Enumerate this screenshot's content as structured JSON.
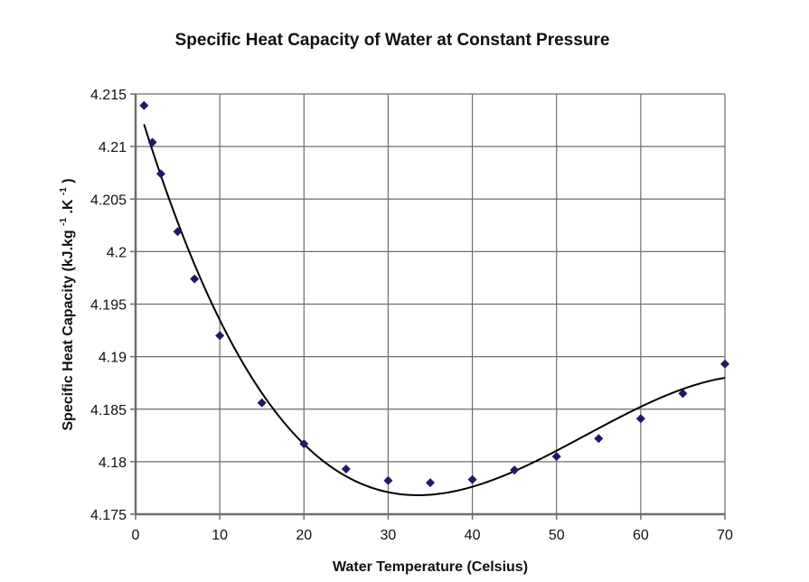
{
  "chart_data": {
    "type": "scatter",
    "title": "Specific Heat Capacity of Water at Constant Pressure",
    "xlabel": "Water Temperature (Celsius)",
    "ylabel": {
      "prefix": "Specific Heat Capacity (kJ.kg",
      "sup1": "-1",
      "mid": ".K",
      "sup2": "-1",
      "suffix": ")"
    },
    "xlim": [
      0,
      70
    ],
    "ylim": [
      4.175,
      4.215
    ],
    "x_ticks": [
      0,
      10,
      20,
      30,
      40,
      50,
      60,
      70
    ],
    "y_ticks": [
      4.175,
      4.18,
      4.185,
      4.19,
      4.195,
      4.2,
      4.205,
      4.21,
      4.215
    ],
    "y_tick_labels": [
      "4.175",
      "4.18",
      "4.185",
      "4.19",
      "4.195",
      "4.2",
      "4.205",
      "4.21",
      "4.215"
    ],
    "grid": true,
    "legend": "none",
    "series": [
      {
        "name": "Specific heat capacity",
        "marker": "diamond",
        "color": "#1f1a66",
        "x": [
          1,
          2,
          3,
          5,
          7,
          10,
          15,
          20,
          25,
          30,
          35,
          40,
          45,
          50,
          55,
          60,
          65,
          70
        ],
        "y": [
          4.2139,
          4.2104,
          4.2074,
          4.2019,
          4.1974,
          4.192,
          4.1856,
          4.1817,
          4.1793,
          4.1782,
          4.178,
          4.1783,
          4.1792,
          4.1805,
          4.1822,
          4.1841,
          4.1865,
          4.1893
        ]
      }
    ],
    "trendline": {
      "type": "polynomial",
      "order": 3,
      "color": "#000000",
      "x_range": [
        1,
        70
      ]
    }
  },
  "colors": {
    "grid": "#6e6e6e",
    "axis": "#6e6e6e",
    "marker": "#1f1a66",
    "trendline": "#000000"
  }
}
